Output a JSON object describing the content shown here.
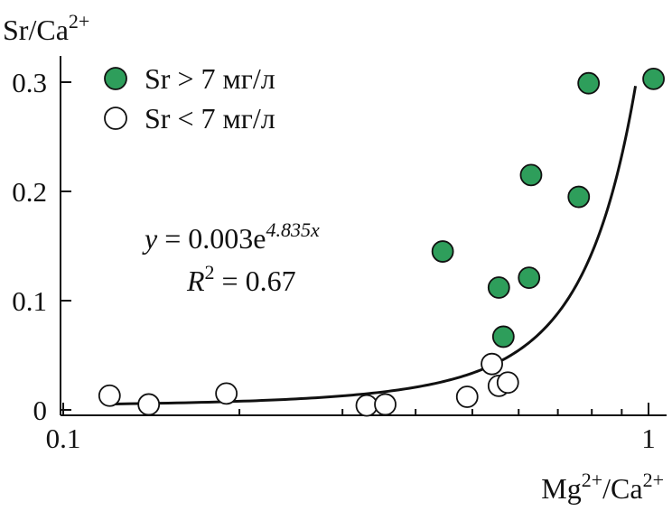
{
  "chart_data": {
    "type": "scatter",
    "title": "",
    "xlabel": {
      "base": "Mg",
      "sup1": "2+",
      "mid": "/Ca",
      "sup2": "2+"
    },
    "ylabel": {
      "base": "Sr/Ca",
      "sup": "2+"
    },
    "x_scale": "log",
    "xlim": [
      0.1,
      1.05
    ],
    "ylim": [
      0,
      0.33
    ],
    "x_ticks": [
      {
        "value": 0.1,
        "label": "0.1"
      },
      {
        "value": 1,
        "label": "1"
      }
    ],
    "y_ticks": [
      {
        "value": 0,
        "label": "0"
      },
      {
        "value": 0.1,
        "label": "0.1"
      },
      {
        "value": 0.2,
        "label": "0.2"
      },
      {
        "value": 0.3,
        "label": "0.3"
      }
    ],
    "grid": false,
    "legend_position": "top-left",
    "series": [
      {
        "name": "Sr > 7 мг/л",
        "marker": "filled-circle",
        "color": "#2e9e5b",
        "points": [
          {
            "x": 0.445,
            "y": 0.145
          },
          {
            "x": 0.555,
            "y": 0.112
          },
          {
            "x": 0.565,
            "y": 0.067
          },
          {
            "x": 0.625,
            "y": 0.121
          },
          {
            "x": 0.63,
            "y": 0.215
          },
          {
            "x": 0.76,
            "y": 0.195
          },
          {
            "x": 0.79,
            "y": 0.299
          },
          {
            "x": 1.02,
            "y": 0.303
          }
        ]
      },
      {
        "name": "Sr < 7 мг/л",
        "marker": "open-circle",
        "color": "#ffffff",
        "points": [
          {
            "x": 0.12,
            "y": 0.013
          },
          {
            "x": 0.14,
            "y": 0.005
          },
          {
            "x": 0.19,
            "y": 0.015
          },
          {
            "x": 0.33,
            "y": 0.004
          },
          {
            "x": 0.355,
            "y": 0.005
          },
          {
            "x": 0.49,
            "y": 0.012
          },
          {
            "x": 0.54,
            "y": 0.042
          },
          {
            "x": 0.555,
            "y": 0.022
          },
          {
            "x": 0.575,
            "y": 0.025
          }
        ]
      }
    ],
    "fit": {
      "type": "exponential",
      "a": 0.003,
      "b": 4.835,
      "x_range": [
        0.12,
        0.95
      ],
      "equation": {
        "lhs": "y",
        "eq": " = 0.003e",
        "exp": "4.835x"
      },
      "r2": {
        "lhs": "R",
        "sup": "2",
        "rhs": " = 0.67"
      }
    }
  }
}
